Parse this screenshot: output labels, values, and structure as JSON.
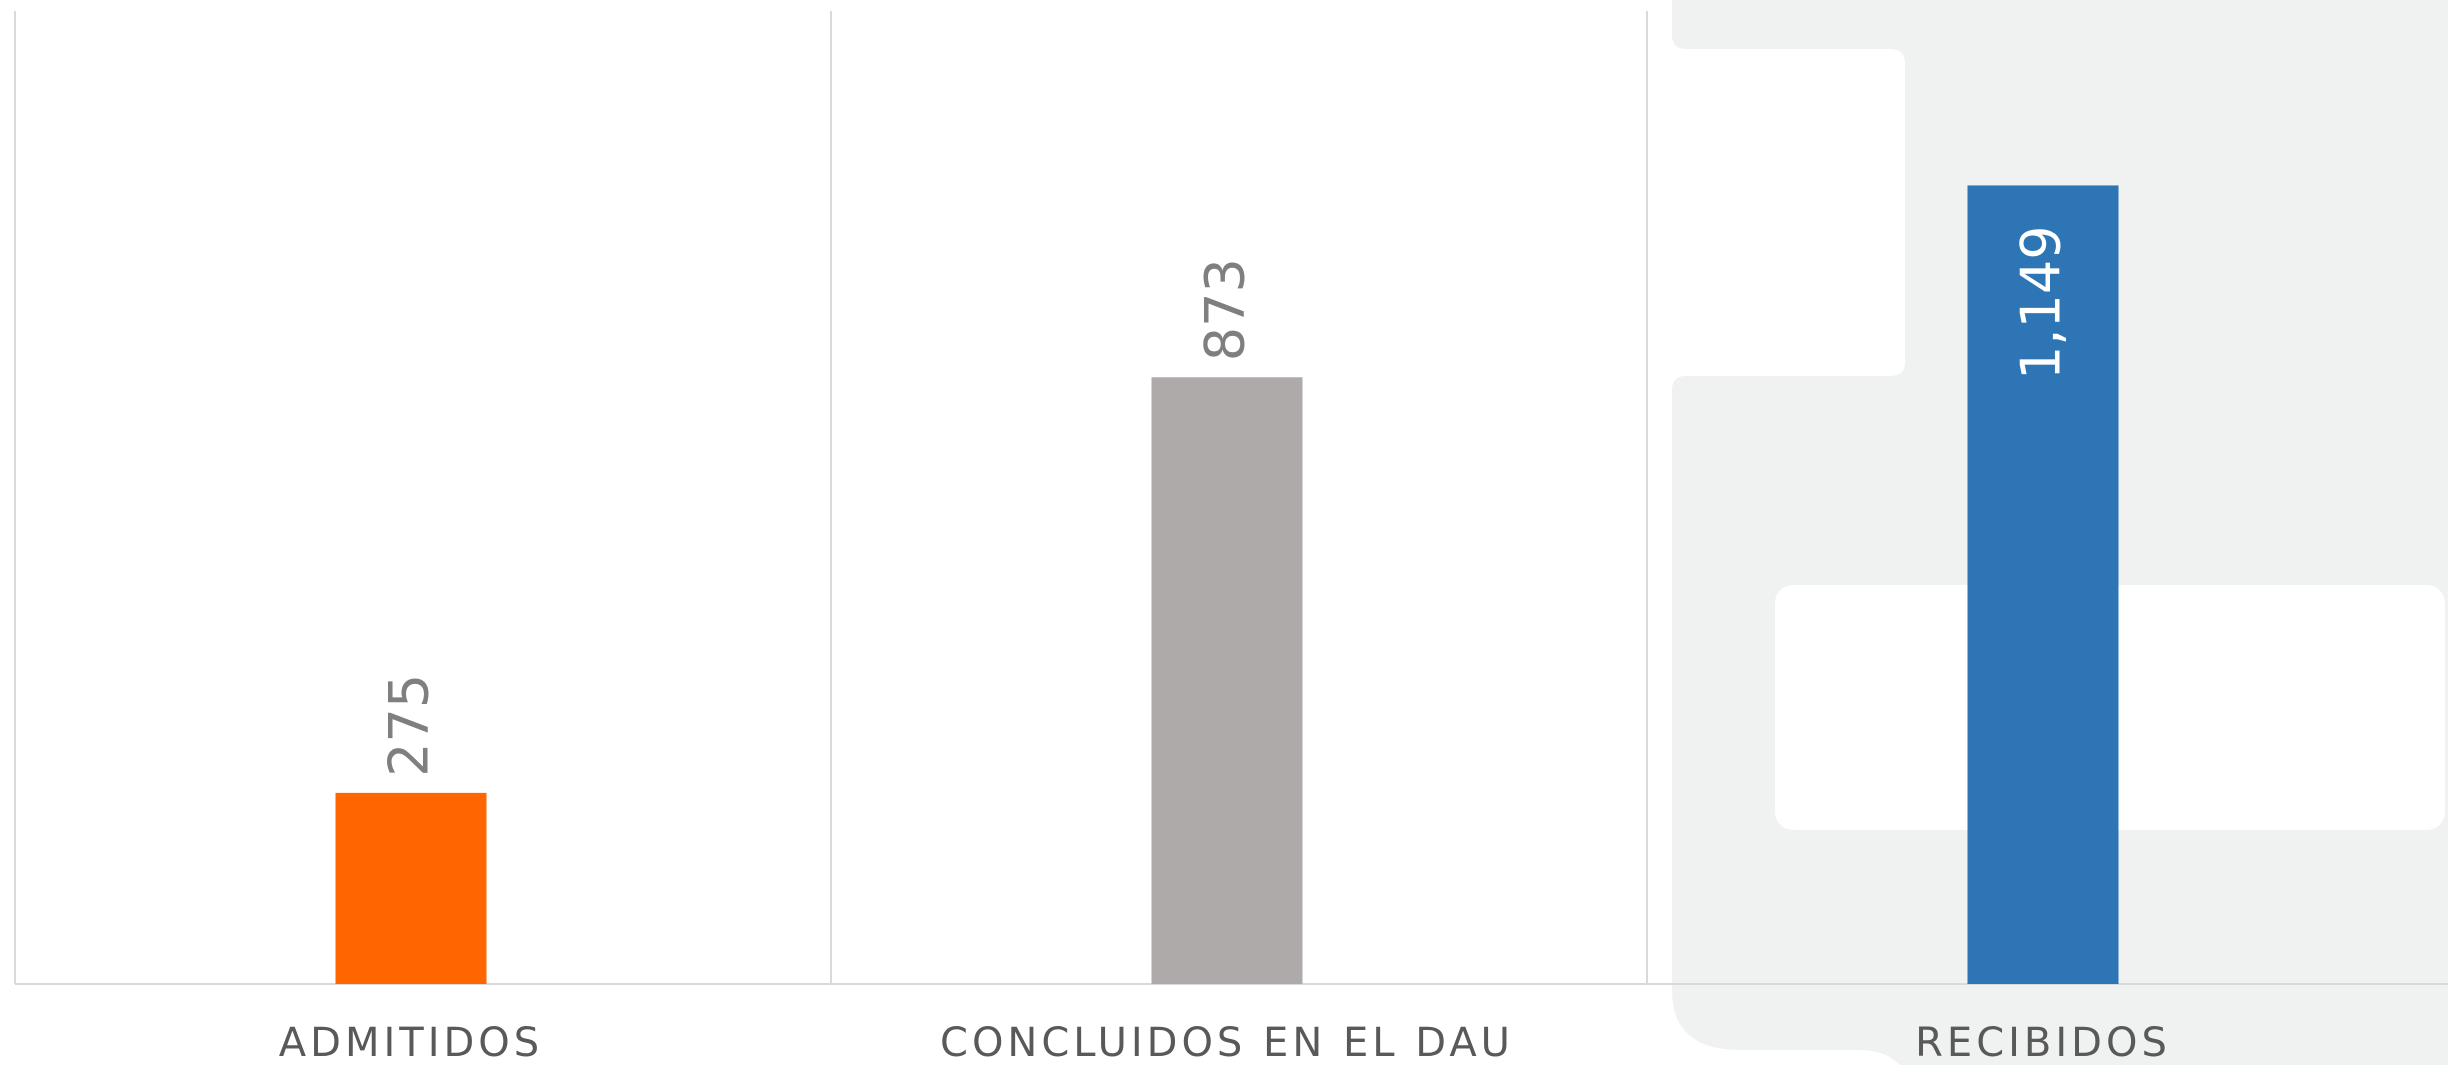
{
  "chart_data": {
    "type": "bar",
    "categories": [
      "ADMITIDOS",
      "CONCLUIDOS EN EL DAU",
      "RECIBIDOS"
    ],
    "values": [
      275,
      873,
      1149
    ],
    "value_labels": [
      "275",
      "873",
      "1,149"
    ],
    "colors": [
      "#ff6600",
      "#aeaaaa",
      "#2e75b6"
    ],
    "ylim": [
      0,
      1400
    ]
  }
}
